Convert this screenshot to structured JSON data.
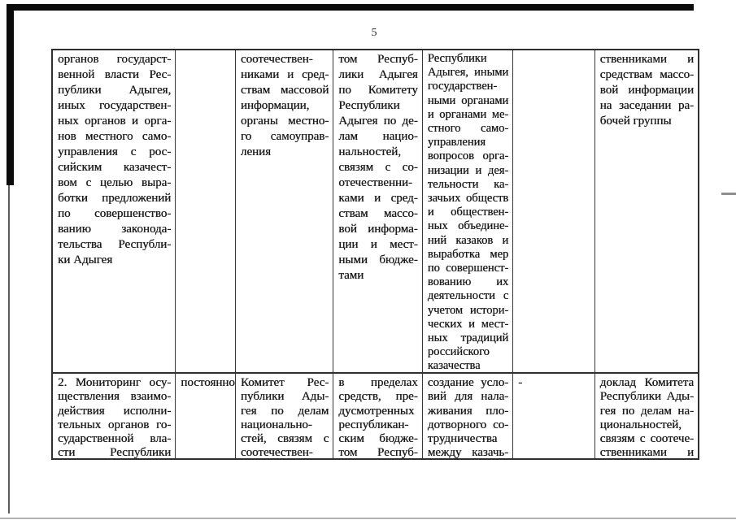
{
  "page": {
    "number": "5"
  },
  "colors": {
    "paper": "#ffffff",
    "ink": "#1c1c1c",
    "table_border": "#2f2f2f",
    "scan_frame": "#0b0b0b"
  },
  "table": {
    "rows": [
      {
        "cells": [
          {
            "lines": [
              "органов государст-",
              "венной власти Рес-",
              "публики Адыгея,",
              "иных государствен-",
              "ных органов и орга-",
              "нов местного само-",
              "управления с рос-",
              "сийским казачест-",
              "вом с целью выра-",
              "ботки предложений",
              "по совершенство-",
              "ванию законода-",
              "тельства Республи-",
              "ки Адыгея"
            ]
          },
          {
            "lines": []
          },
          {
            "lines": [
              "соотечествен-",
              "никами и сред-",
              "ствам массовой",
              "информации,",
              "органы местно-",
              "го самоуправ-",
              "ления"
            ]
          },
          {
            "lines": [
              "том Респуб-",
              "лики Адыгея",
              "по Комитету",
              "Республики",
              "Адыгея по де-",
              "лам нацио-",
              "нальностей,",
              "связям с со-",
              "отечественни-",
              "ками и сред-",
              "ствам массо-",
              "вой информа-",
              "ции и мест-",
              "ными бюдже-",
              "тами"
            ]
          },
          {
            "lines": [
              "Республики",
              "Адыгея, иными",
              "государствен-",
              "ными органами",
              "и органами ме-",
              "стного само-",
              "управления",
              "вопросов орга-",
              "низации и дея-",
              "тельности ка-",
              "зачьих обществ",
              "и обществен-",
              "ных объедине-",
              "ний казаков и",
              "выработка мер",
              "по совершенст-",
              "вованию их",
              "деятельности с",
              "учетом истори-",
              "ческих и мест-",
              "ных традиций",
              "российского",
              "казачества"
            ]
          },
          {
            "lines": []
          },
          {
            "lines": [
              "ственниками и",
              "средствам массо-",
              "вой информации",
              "на заседании ра-",
              "бочей группы"
            ]
          }
        ]
      },
      {
        "cells": [
          {
            "lines": [
              "2. Мониторинг осу-",
              "ществления взаимо-",
              "действия исполни-",
              "тельных органов го-",
              "сударственной вла-",
              "сти Республики"
            ]
          },
          {
            "lines": [
              "постоянно"
            ]
          },
          {
            "lines": [
              "Комитет Рес-",
              "публики Ады-",
              "гея по делам",
              "национально-",
              "стей, связям с",
              "соотечествен-"
            ]
          },
          {
            "lines": [
              "в пределах",
              "средств, пре-",
              "дусмотренных",
              "республикан-",
              "ским бюдже-",
              "том Респуб-"
            ]
          },
          {
            "lines": [
              "создание усло-",
              "вий для нала-",
              "живания пло-",
              "дотворного со-",
              "трудничества",
              "между казачь-"
            ]
          },
          {
            "lines": [
              "-"
            ]
          },
          {
            "lines": [
              "доклад Комитета",
              "Республики Ады-",
              "гея по делам на-",
              "циональностей,",
              "связям с соотече-",
              "ственниками и"
            ]
          }
        ]
      }
    ]
  }
}
